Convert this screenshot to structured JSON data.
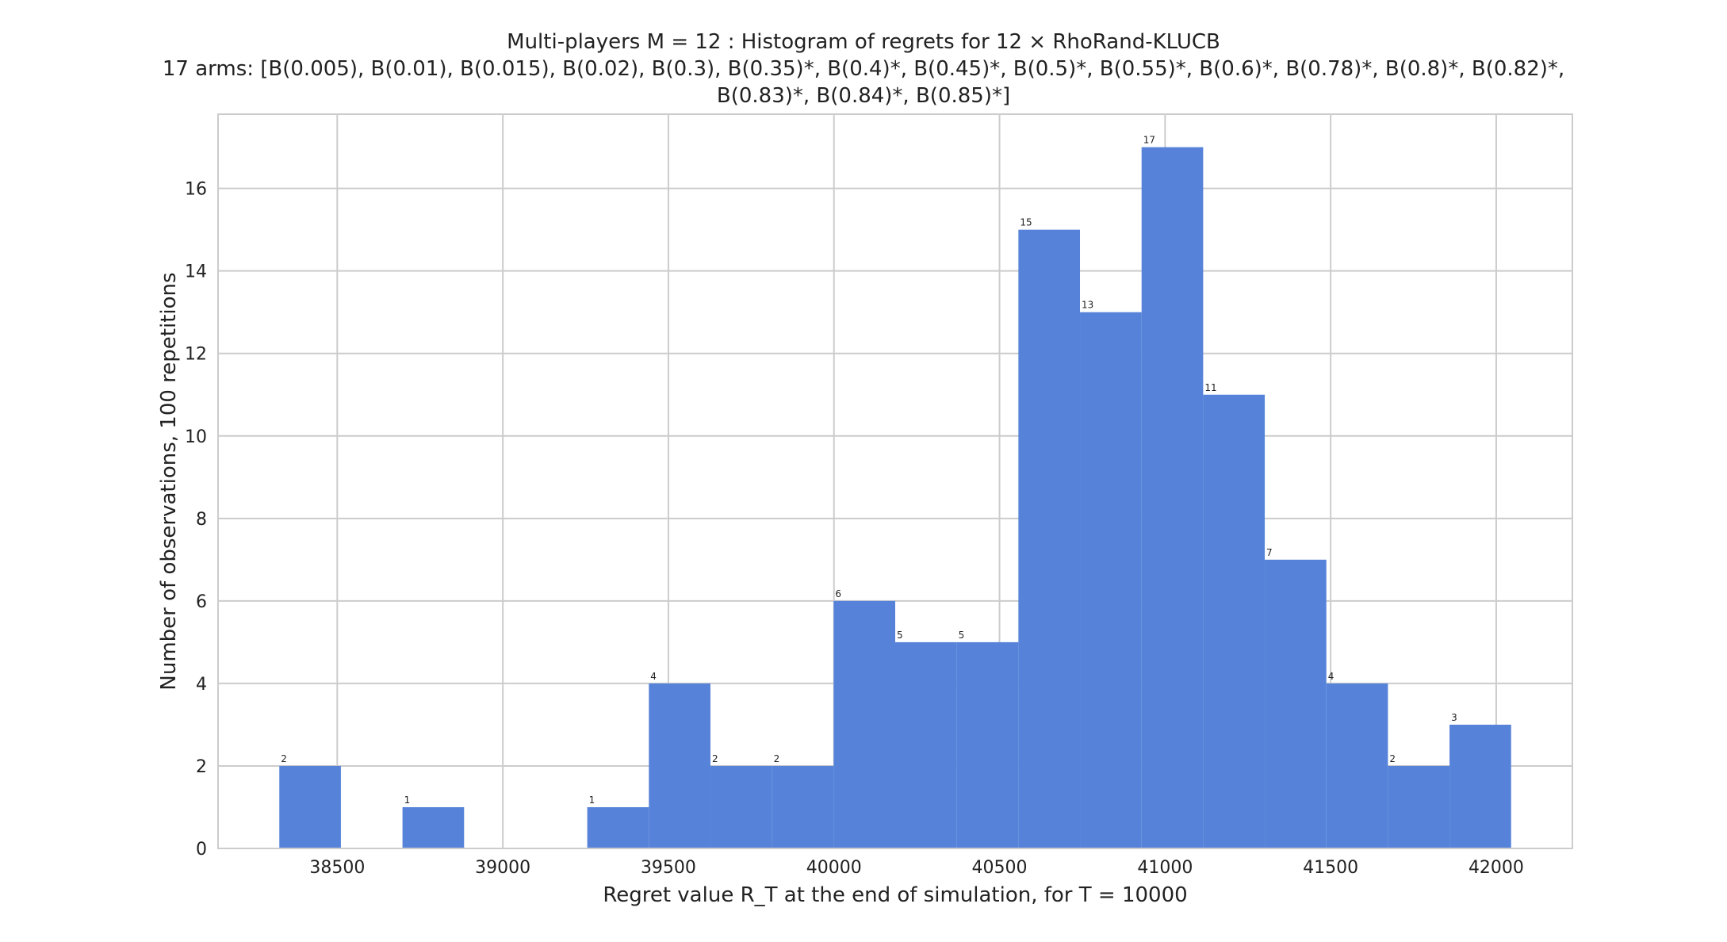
{
  "chart_data": {
    "type": "bar",
    "title_line1": "Multi-players M = 12 : Histogram of regrets for 12 × RhoRand-KLUCB",
    "title_line2": "17 arms: [B(0.005), B(0.01), B(0.015), B(0.02), B(0.3), B(0.35)*, B(0.4)*, B(0.45)*, B(0.5)*, B(0.55)*, B(0.6)*, B(0.78)*, B(0.8)*, B(0.82)*,",
    "title_line3": "B(0.83)*, B(0.84)*, B(0.85)*]",
    "xlabel": "Regret value R_T at the end of simulation, for T = 10000",
    "ylabel": "Number of observations, 100 repetitions",
    "xlim": [
      38140,
      42230
    ],
    "ylim": [
      0,
      17.8
    ],
    "xticks": [
      38500,
      39000,
      39500,
      40000,
      40500,
      41000,
      41500,
      42000
    ],
    "yticks": [
      0,
      2,
      4,
      6,
      8,
      10,
      12,
      14,
      16
    ],
    "grid": true,
    "bar_color": "#5683d9",
    "bins": [
      {
        "x0": 38325,
        "x1": 38511,
        "count": 2
      },
      {
        "x0": 38511,
        "x1": 38697,
        "count": 0
      },
      {
        "x0": 38697,
        "x1": 38883,
        "count": 1
      },
      {
        "x0": 38883,
        "x1": 39069,
        "count": 0
      },
      {
        "x0": 39069,
        "x1": 39255,
        "count": 0
      },
      {
        "x0": 39255,
        "x1": 39441,
        "count": 1
      },
      {
        "x0": 39441,
        "x1": 39627,
        "count": 4
      },
      {
        "x0": 39627,
        "x1": 39813,
        "count": 2
      },
      {
        "x0": 39813,
        "x1": 39999,
        "count": 2
      },
      {
        "x0": 39999,
        "x1": 40185,
        "count": 6
      },
      {
        "x0": 40185,
        "x1": 40371,
        "count": 5
      },
      {
        "x0": 40371,
        "x1": 40557,
        "count": 5
      },
      {
        "x0": 40557,
        "x1": 40743,
        "count": 15
      },
      {
        "x0": 40743,
        "x1": 40929,
        "count": 13
      },
      {
        "x0": 40929,
        "x1": 41115,
        "count": 17
      },
      {
        "x0": 41115,
        "x1": 41301,
        "count": 11
      },
      {
        "x0": 41301,
        "x1": 41487,
        "count": 7
      },
      {
        "x0": 41487,
        "x1": 41673,
        "count": 4
      },
      {
        "x0": 41673,
        "x1": 41859,
        "count": 2
      },
      {
        "x0": 41859,
        "x1": 42045,
        "count": 3
      }
    ]
  }
}
